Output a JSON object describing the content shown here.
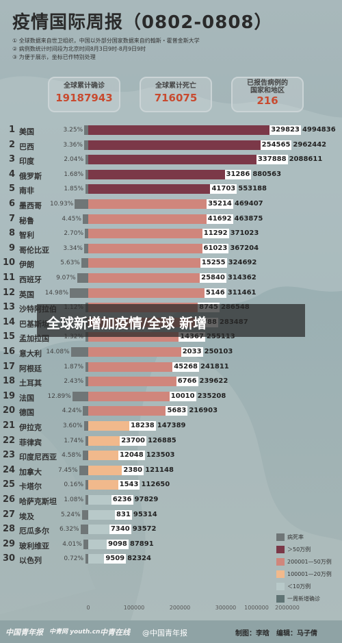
{
  "header": {
    "title": "疫情国际周报（0802-0808）",
    "notes": [
      "① 全球数据来自世卫组织，中国以外部分国家数据来自约翰斯・霍普金斯大学",
      "② 病例数统计时间段为北京时间8月3日9时-8月9日9时",
      "③ 为便于展示，坐标已作特别处理"
    ]
  },
  "summary": [
    {
      "label": "全球累计确诊",
      "value": "19187943"
    },
    {
      "label": "全球累计死亡",
      "value": "716075"
    },
    {
      "label": "已报告病例的\n国家和地区",
      "value": "216"
    }
  ],
  "colors": {
    "over500k": "#7b3848",
    "k200to500": "#d0867c",
    "k100to200": "#f1b98c",
    "under100k": "#b8c9c9",
    "death_rate": "#6f7677",
    "weekly_new": "#5f7374"
  },
  "chart_data": {
    "type": "bar",
    "title": "疫情国际周报（0802-0808）",
    "x_ticks": [
      "0",
      "100000",
      "200000",
      "300000",
      "1000000",
      "2000000"
    ],
    "rows": [
      {
        "rank": "1",
        "country": "美国",
        "death_rate": "3.25%",
        "weekly_new": 329823,
        "total": 4994836,
        "cat": "over500k"
      },
      {
        "rank": "2",
        "country": "巴西",
        "death_rate": "3.36%",
        "weekly_new": 254565,
        "total": 2962442,
        "cat": "over500k"
      },
      {
        "rank": "3",
        "country": "印度",
        "death_rate": "2.04%",
        "weekly_new": 337888,
        "total": 2088611,
        "cat": "over500k"
      },
      {
        "rank": "4",
        "country": "俄罗斯",
        "death_rate": "1.68%",
        "weekly_new": 31286,
        "total": 880563,
        "cat": "over500k"
      },
      {
        "rank": "5",
        "country": "南非",
        "death_rate": "1.85%",
        "weekly_new": 41703,
        "total": 553188,
        "cat": "over500k"
      },
      {
        "rank": "6",
        "country": "墨西哥",
        "death_rate": "10.93%",
        "weekly_new": 35214,
        "total": 469407,
        "cat": "k200to500"
      },
      {
        "rank": "7",
        "country": "秘鲁",
        "death_rate": "4.45%",
        "weekly_new": 41692,
        "total": 463875,
        "cat": "k200to500"
      },
      {
        "rank": "8",
        "country": "智利",
        "death_rate": "2.70%",
        "weekly_new": 11292,
        "total": 371023,
        "cat": "k200to500"
      },
      {
        "rank": "9",
        "country": "哥伦比亚",
        "death_rate": "3.34%",
        "weekly_new": 61023,
        "total": 367204,
        "cat": "k200to500"
      },
      {
        "rank": "10",
        "country": "伊朗",
        "death_rate": "5.63%",
        "weekly_new": 15255,
        "total": 324692,
        "cat": "k200to500"
      },
      {
        "rank": "11",
        "country": "西班牙",
        "death_rate": "9.07%",
        "weekly_new": 25840,
        "total": 314362,
        "cat": "k200to500"
      },
      {
        "rank": "12",
        "country": "英国",
        "death_rate": "14.98%",
        "weekly_new": 5146,
        "total": 311461,
        "cat": "k200to500"
      },
      {
        "rank": "13",
        "country": "沙特阿拉伯",
        "death_rate": "1.12%",
        "weekly_new": 8745,
        "total": 286548,
        "cat": "k200to500"
      },
      {
        "rank": "14",
        "country": "巴基斯坦",
        "death_rate": "2.14%",
        "weekly_new": 3788,
        "total": 283487,
        "cat": "k200to500"
      },
      {
        "rank": "15",
        "country": "孟加拉国",
        "death_rate": "1.32%",
        "weekly_new": 14367,
        "total": 255113,
        "cat": "k200to500"
      },
      {
        "rank": "16",
        "country": "意大利",
        "death_rate": "14.08%",
        "weekly_new": 2033,
        "total": 250103,
        "cat": "k200to500"
      },
      {
        "rank": "17",
        "country": "阿根廷",
        "death_rate": "1.87%",
        "weekly_new": 45268,
        "total": 241811,
        "cat": "k200to500"
      },
      {
        "rank": "18",
        "country": "土耳其",
        "death_rate": "2.43%",
        "weekly_new": 6766,
        "total": 239622,
        "cat": "k200to500"
      },
      {
        "rank": "19",
        "country": "法国",
        "death_rate": "12.89%",
        "weekly_new": 10010,
        "total": 235208,
        "cat": "k200to500"
      },
      {
        "rank": "20",
        "country": "德国",
        "death_rate": "4.24%",
        "weekly_new": 5683,
        "total": 216903,
        "cat": "k200to500"
      },
      {
        "rank": "21",
        "country": "伊拉克",
        "death_rate": "3.60%",
        "weekly_new": 18238,
        "total": 147389,
        "cat": "k100to200"
      },
      {
        "rank": "22",
        "country": "菲律宾",
        "death_rate": "1.74%",
        "weekly_new": 23700,
        "total": 126885,
        "cat": "k100to200"
      },
      {
        "rank": "23",
        "country": "印度尼西亚",
        "death_rate": "4.58%",
        "weekly_new": 12048,
        "total": 123503,
        "cat": "k100to200"
      },
      {
        "rank": "24",
        "country": "加拿大",
        "death_rate": "7.45%",
        "weekly_new": 2380,
        "total": 121148,
        "cat": "k100to200"
      },
      {
        "rank": "25",
        "country": "卡塔尔",
        "death_rate": "0.16%",
        "weekly_new": 1543,
        "total": 112650,
        "cat": "k100to200"
      },
      {
        "rank": "26",
        "country": "哈萨克斯坦",
        "death_rate": "1.08%",
        "weekly_new": 6236,
        "total": 97829,
        "cat": "under100k"
      },
      {
        "rank": "27",
        "country": "埃及",
        "death_rate": "5.24%",
        "weekly_new": 831,
        "total": 95314,
        "cat": "under100k"
      },
      {
        "rank": "28",
        "country": "厄瓜多尔",
        "death_rate": "6.32%",
        "weekly_new": 7340,
        "total": 93572,
        "cat": "under100k"
      },
      {
        "rank": "29",
        "country": "玻利维亚",
        "death_rate": "4.01%",
        "weekly_new": 9098,
        "total": 87891,
        "cat": "under100k"
      },
      {
        "rank": "30",
        "country": "以色列",
        "death_rate": "0.72%",
        "weekly_new": 9509,
        "total": 82324,
        "cat": "under100k"
      }
    ],
    "legend": [
      {
        "label": "病死率",
        "color_key": "death_rate"
      },
      {
        "label": "＞50万例",
        "color_key": "over500k"
      },
      {
        "label": "200001—50万例",
        "color_key": "k200to500"
      },
      {
        "label": "100001—20万例",
        "color_key": "k100to200"
      },
      {
        "label": "＜10万例",
        "color_key": "under100k"
      },
      {
        "label": "一周新增确诊",
        "color_key": "weekly_new"
      }
    ]
  },
  "banner": {
    "text": "全球新增加疫情/全球 新增"
  },
  "footer": {
    "logo1": "中国青年报",
    "logo2": "中青网 youth.cn",
    "logo3": "中青在线",
    "center": "@中国青年报",
    "right": "制图：李晗　编辑：马子倩"
  }
}
